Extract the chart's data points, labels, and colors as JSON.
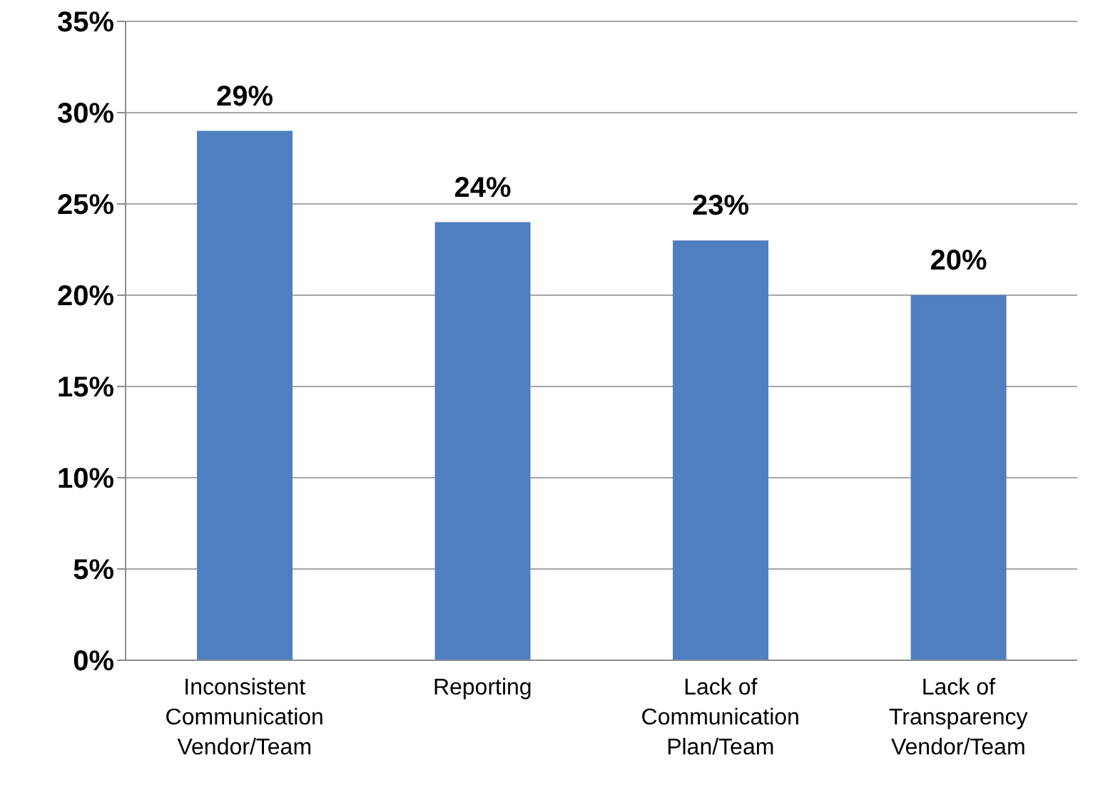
{
  "chart_data": {
    "type": "bar",
    "categories": [
      "Inconsistent Communication Vendor/Team",
      "Reporting",
      "Lack of Communication Plan/Team",
      "Lack of Transparency Vendor/Team"
    ],
    "values": [
      29,
      24,
      23,
      20
    ],
    "color": "#4f7ec1",
    "ylim": [
      0,
      35
    ],
    "yticks": [
      {
        "value": 0,
        "label": "0%"
      },
      {
        "value": 5,
        "label": "5%"
      },
      {
        "value": 10,
        "label": "10%"
      },
      {
        "value": 15,
        "label": "15%"
      },
      {
        "value": 20,
        "label": "20%"
      },
      {
        "value": 25,
        "label": "25%"
      },
      {
        "value": 30,
        "label": "30%"
      },
      {
        "value": 35,
        "label": "35%"
      }
    ],
    "value_labels": [
      "29%",
      "24%",
      "23%",
      "20%"
    ],
    "grid": "y"
  }
}
